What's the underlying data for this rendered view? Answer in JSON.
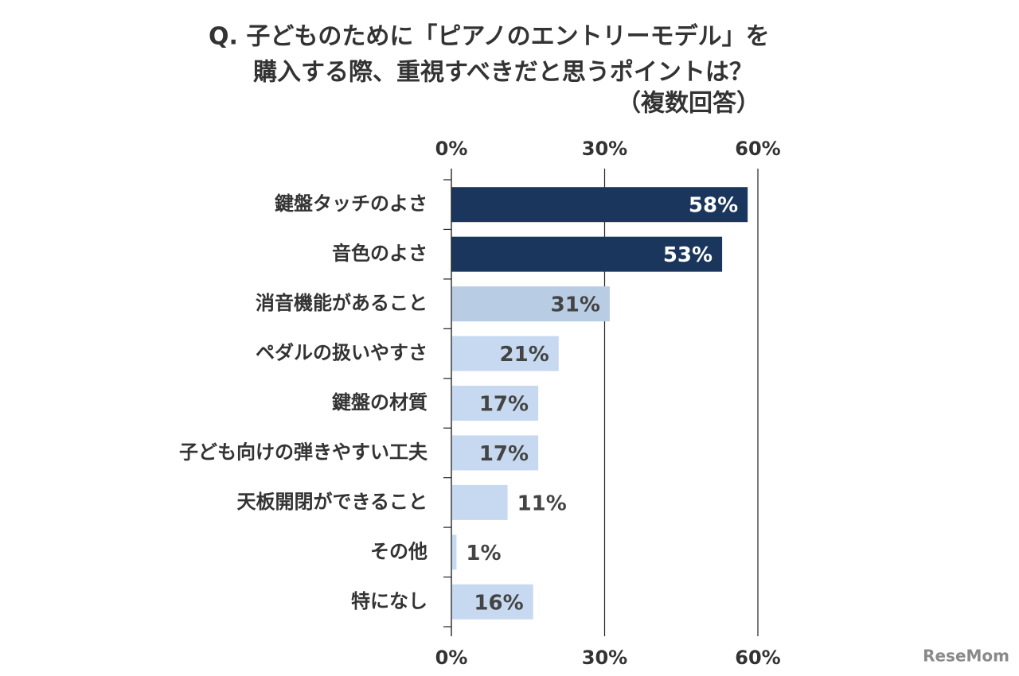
{
  "chart_data": {
    "type": "barh",
    "title": [
      "Q. 子どものために「ピアノのエントリーモデル」を",
      "購入する際、重視すべきだと思うポイントは？",
      "（複数回答）"
    ],
    "categories": [
      "鍵盤タッチのよさ",
      "音色のよさ",
      "消音機能があること",
      "ペダルの扱いやすさ",
      "鍵盤の材質",
      "子ども向けの弾きやすい工夫",
      "天板開閉ができること",
      "その他",
      "特になし"
    ],
    "values": [
      58,
      53,
      31,
      21,
      17,
      17,
      11,
      1,
      16
    ],
    "value_labels": [
      "58%",
      "53%",
      "31%",
      "21%",
      "17%",
      "17%",
      "11%",
      "1%",
      "16%"
    ],
    "colors": [
      "#1b365d",
      "#1b365d",
      "#b8cce4",
      "#c6d9f0",
      "#c6d9f0",
      "#c6d9f0",
      "#c6d9f0",
      "#c6d9f0",
      "#c6d9f0"
    ],
    "xlim": [
      0,
      60
    ],
    "xticks": [
      {
        "value": 0,
        "label": "0%"
      },
      {
        "value": 30,
        "label": "30%"
      },
      {
        "value": 60,
        "label": "60%"
      }
    ],
    "grid": true
  },
  "logo": "ReseMom"
}
